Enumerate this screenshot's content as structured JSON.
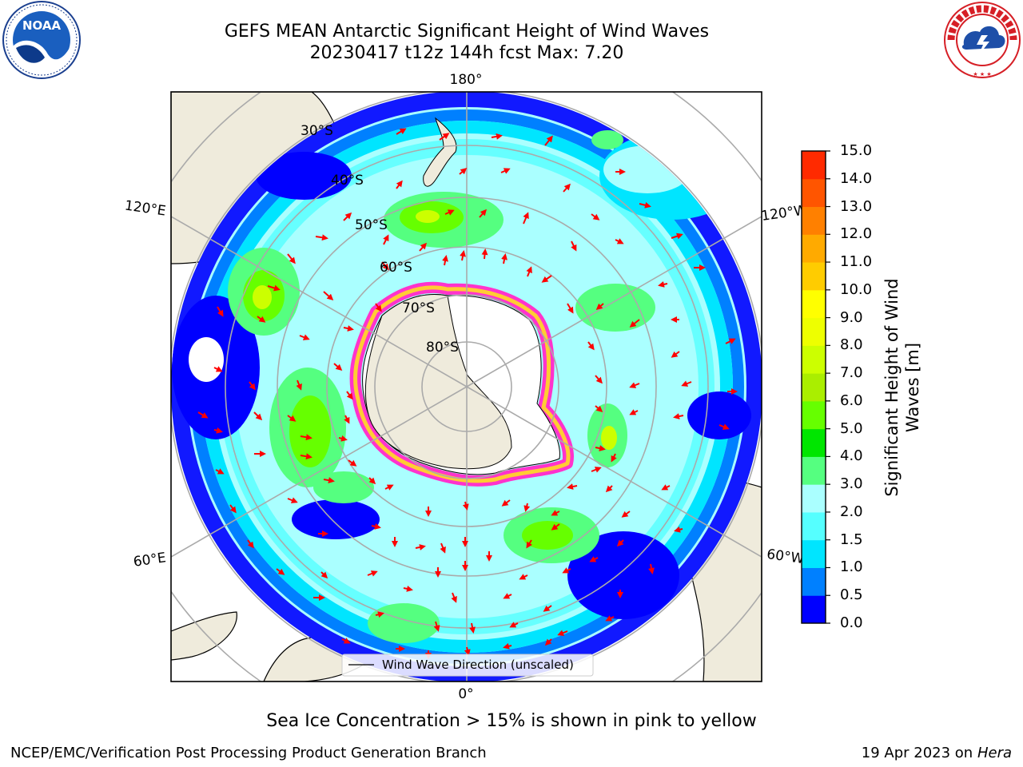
{
  "header": {
    "title_line1": "GEFS MEAN Antarctic Significant Height of Wind Waves",
    "title_line2": "20230417 t12z 144h fcst   Max: 7.20"
  },
  "logos": {
    "left": "noaa-logo",
    "left_text": "NOAA",
    "right": "national-weather-service-logo",
    "right_text": "NATIONAL WEATHER SERVICE"
  },
  "map": {
    "projection": "south-polar-stereographic",
    "longitude_labels": {
      "top": "180°",
      "bottom": "0°",
      "upper_left": "120°E",
      "upper_right": "120°W",
      "lower_left": "60°E",
      "lower_right": "60°W"
    },
    "latitude_labels": [
      "30°S",
      "40°S",
      "50°S",
      "60°S",
      "70°S",
      "80°S"
    ],
    "legend": "Wind Wave Direction (unscaled)",
    "arrow_color": "#ff0000",
    "land_color": "#efebdc",
    "ice_edge_colors": [
      "#ff33cc",
      "#ffcc33"
    ]
  },
  "colorbar": {
    "label": "Significant Height of Wind Waves [m]",
    "ticks": [
      "0.0",
      "0.5",
      "1.0",
      "1.5",
      "2.0",
      "3.0",
      "4.0",
      "5.0",
      "6.0",
      "7.0",
      "8.0",
      "9.0",
      "10.0",
      "11.0",
      "12.0",
      "13.0",
      "14.0",
      "15.0"
    ],
    "colors": [
      "#0000ff",
      "#0080ff",
      "#00e5ff",
      "#55ffff",
      "#aaffff",
      "#55ff80",
      "#00e600",
      "#66ff00",
      "#aaee00",
      "#ccff00",
      "#eeff00",
      "#ffff00",
      "#ffcc00",
      "#ffaa00",
      "#ff8000",
      "#ff5500",
      "#ff2a00",
      "#ff0000"
    ]
  },
  "notes": {
    "sea_ice": "Sea Ice Concentration > 15% is shown in pink to yellow",
    "footer_left": "NCEP/EMC/Verification Post Processing Product Generation Branch",
    "footer_date": "19 Apr 2023 on",
    "footer_host": "Hera"
  }
}
